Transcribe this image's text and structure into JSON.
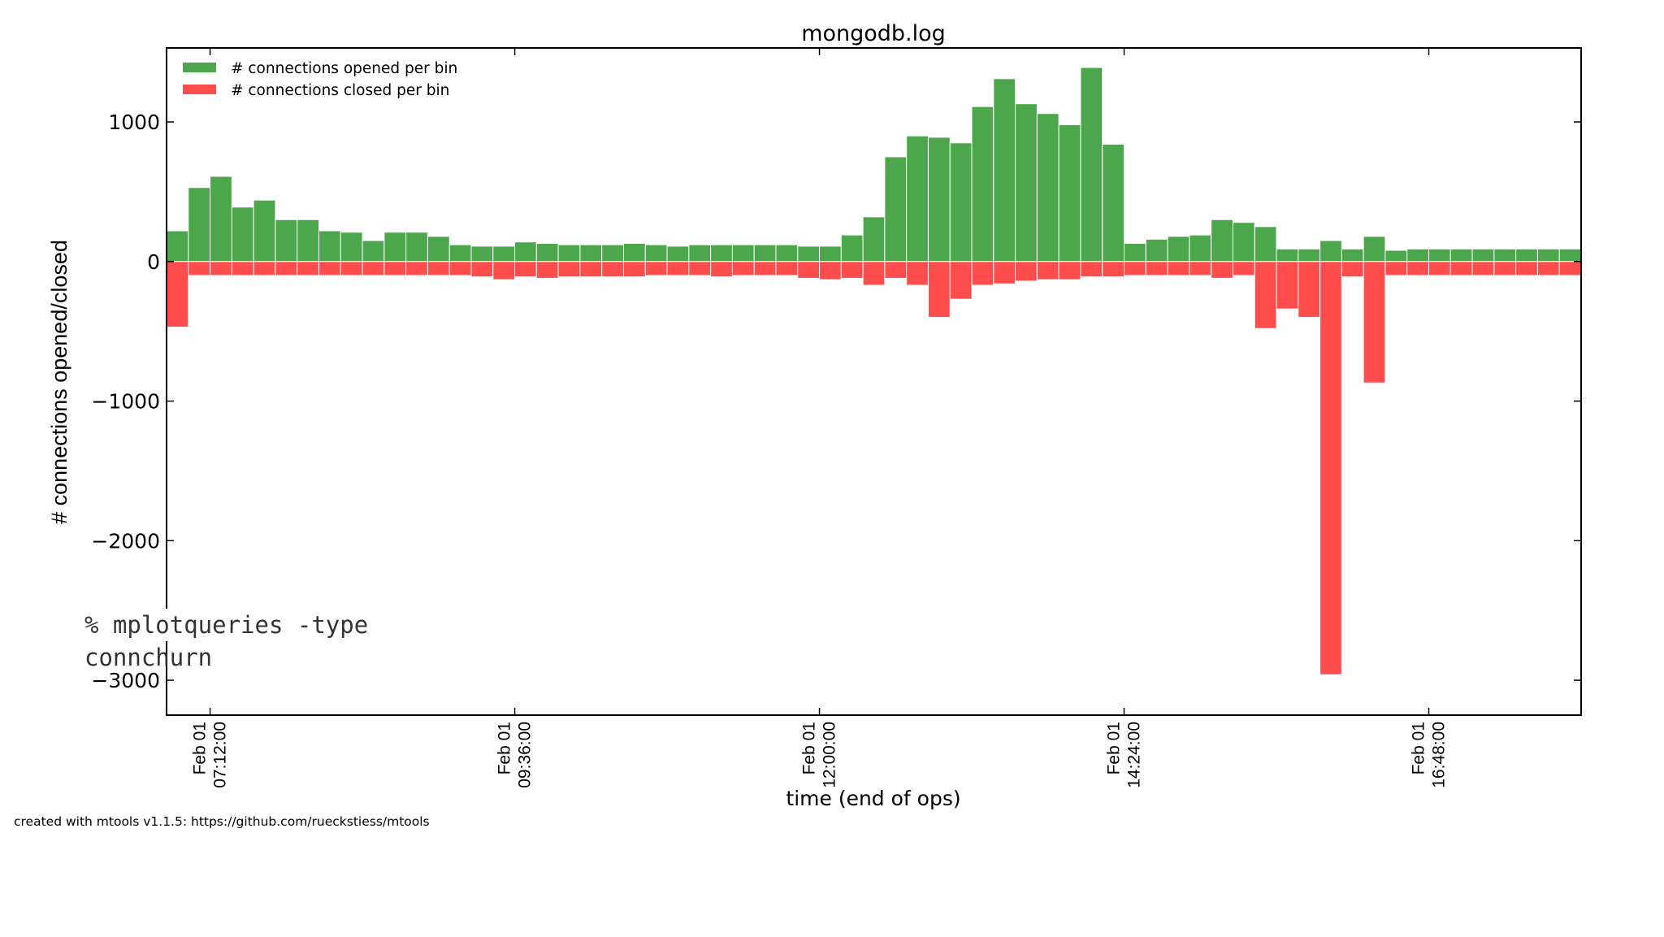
{
  "chart_data": {
    "type": "bar",
    "title": "mongodb.log",
    "xlabel": "time (end of ops)",
    "ylabel": "# connections opened/closed",
    "ylim": [
      -3250,
      1530
    ],
    "yticks": [
      1000,
      0,
      -1000,
      -2000,
      -3000
    ],
    "ytick_labels": [
      "1000",
      "0",
      "−1000",
      "−2000",
      "−3000"
    ],
    "xticks": [
      {
        "bin": 2,
        "date": "Feb 01",
        "time": "07:12:00"
      },
      {
        "bin": 16,
        "date": "Feb 01",
        "time": "09:36:00"
      },
      {
        "bin": 30,
        "date": "Feb 01",
        "time": "12:00:00"
      },
      {
        "bin": 44,
        "date": "Feb 01",
        "time": "14:24:00"
      },
      {
        "bin": 58,
        "date": "Feb 01",
        "time": "16:48:00"
      }
    ],
    "grid": false,
    "legend_position": "upper-left",
    "series": [
      {
        "name": "# connections opened per bin",
        "color": "#4ca64c",
        "values": [
          220,
          530,
          610,
          390,
          440,
          300,
          300,
          220,
          210,
          150,
          210,
          210,
          180,
          120,
          110,
          110,
          140,
          130,
          120,
          120,
          120,
          130,
          120,
          110,
          120,
          120,
          120,
          120,
          120,
          110,
          110,
          190,
          320,
          750,
          900,
          890,
          850,
          1110,
          1310,
          1130,
          1060,
          980,
          1390,
          840,
          130,
          160,
          180,
          190,
          300,
          280,
          250,
          90,
          90,
          150,
          90,
          180,
          80,
          90,
          90,
          90,
          90,
          90,
          90,
          90,
          90
        ]
      },
      {
        "name": "# connections closed per bin",
        "color": "#ff4c4c",
        "values": [
          -470,
          -100,
          -100,
          -100,
          -100,
          -100,
          -100,
          -100,
          -100,
          -100,
          -100,
          -100,
          -100,
          -100,
          -110,
          -130,
          -110,
          -120,
          -110,
          -110,
          -110,
          -110,
          -100,
          -100,
          -100,
          -110,
          -100,
          -100,
          -100,
          -120,
          -130,
          -120,
          -170,
          -120,
          -170,
          -400,
          -270,
          -170,
          -160,
          -140,
          -130,
          -130,
          -110,
          -110,
          -100,
          -100,
          -100,
          -100,
          -120,
          -100,
          -480,
          -340,
          -400,
          -2960,
          -110,
          -870,
          -100,
          -100,
          -100,
          -100,
          -100,
          -100,
          -100,
          -100,
          -100
        ]
      }
    ]
  },
  "command_overlay": "% mplotqueries -type connchurn",
  "credit": "created with mtools v1.1.5: https://github.com/rueckstiess/mtools"
}
